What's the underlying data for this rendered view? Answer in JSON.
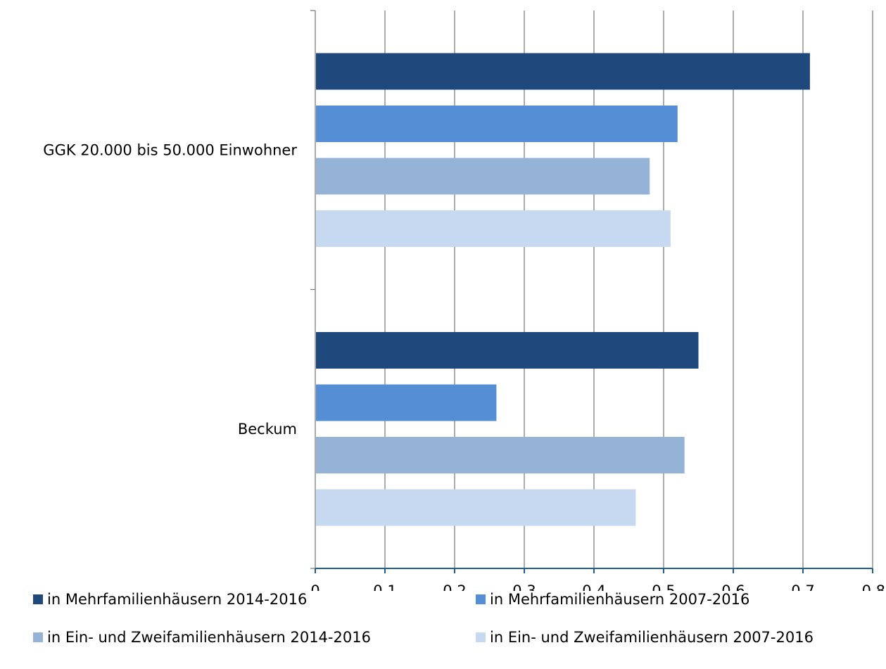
{
  "chart_data": {
    "type": "bar",
    "orientation": "horizontal",
    "title": "",
    "xlabel": "",
    "ylabel": "",
    "xlim": [
      0,
      0.8
    ],
    "x_ticks": [
      "0",
      "0,1",
      "0,2",
      "0,3",
      "0,4",
      "0,5",
      "0,6",
      "0,7",
      "0,8"
    ],
    "grid": "vertical",
    "legend_position": "bottom",
    "categories": [
      "GGK 20.000 bis 50.000 Einwohner",
      "Beckum"
    ],
    "series": [
      {
        "name": "in Mehrfamilienhäusern 2014-2016",
        "color": "#1f497d",
        "values": [
          0.71,
          0.55
        ]
      },
      {
        "name": "in Mehrfamilienhäusern 2007-2016",
        "color": "#558ed5",
        "values": [
          0.52,
          0.26
        ]
      },
      {
        "name": "in Ein- und Zweifamilienhäusern 2014-2016",
        "color": "#95b3d7",
        "values": [
          0.48,
          0.53
        ]
      },
      {
        "name": "in Ein- und Zweifamilienhäusern 2007-2016",
        "color": "#c6d9f0",
        "values": [
          0.51,
          0.46
        ]
      }
    ],
    "colors": {
      "axis": "#1f5d99",
      "grid": "#808080"
    }
  }
}
